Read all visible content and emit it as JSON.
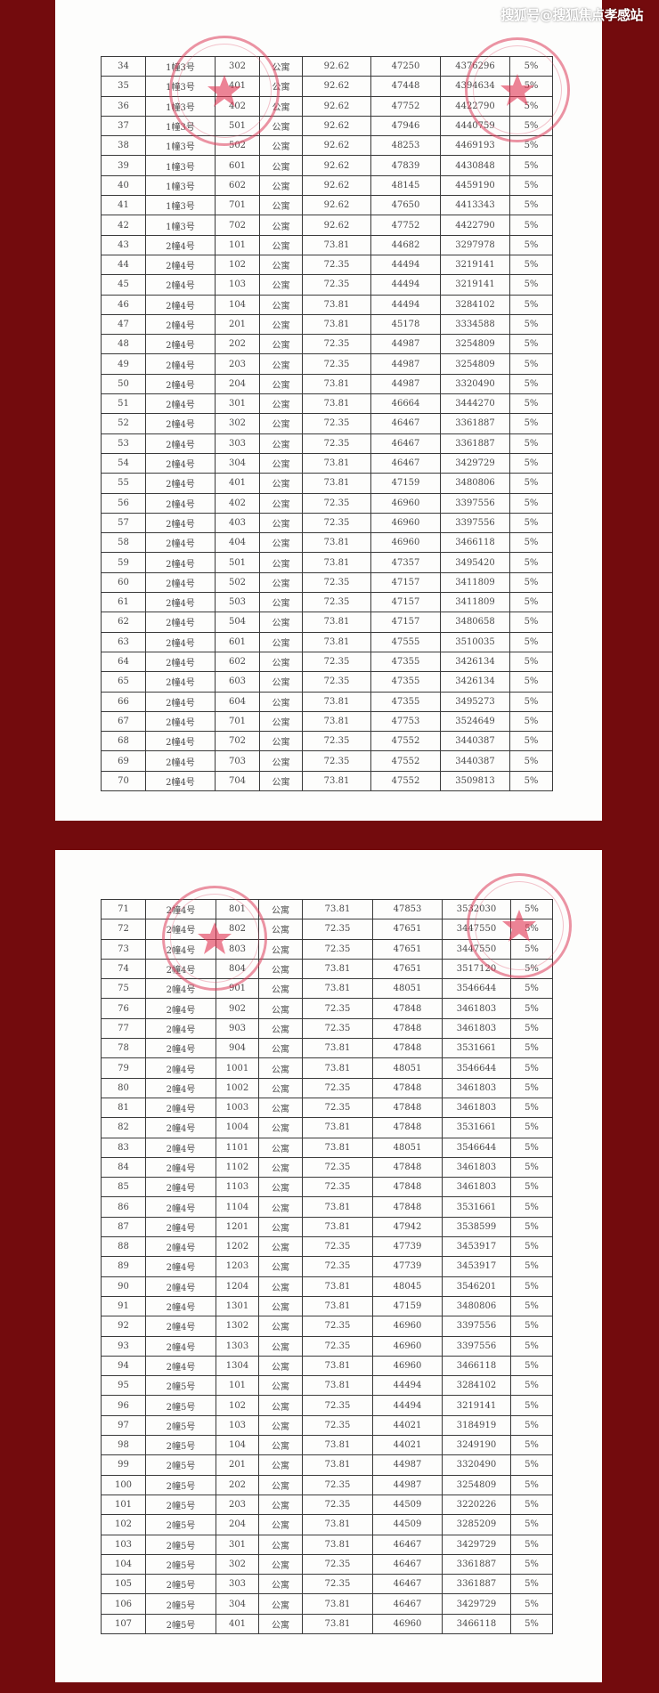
{
  "watermark": "搜狐号@搜狐焦点孝感站",
  "colors": {
    "background": "#730b0d",
    "stamp": "#e0405a",
    "paper": "#fdfdfc"
  },
  "page1": {
    "rows": [
      [
        "34",
        "1幢3号",
        "302",
        "公寓",
        "92.62",
        "47250",
        "4376296",
        "5%"
      ],
      [
        "35",
        "1幢3号",
        "401",
        "公寓",
        "92.62",
        "47448",
        "4394634",
        "5%"
      ],
      [
        "36",
        "1幢3号",
        "402",
        "公寓",
        "92.62",
        "47752",
        "4422790",
        "5%"
      ],
      [
        "37",
        "1幢3号",
        "501",
        "公寓",
        "92.62",
        "47946",
        "4440759",
        "5%"
      ],
      [
        "38",
        "1幢3号",
        "502",
        "公寓",
        "92.62",
        "48253",
        "4469193",
        "5%"
      ],
      [
        "39",
        "1幢3号",
        "601",
        "公寓",
        "92.62",
        "47839",
        "4430848",
        "5%"
      ],
      [
        "40",
        "1幢3号",
        "602",
        "公寓",
        "92.62",
        "48145",
        "4459190",
        "5%"
      ],
      [
        "41",
        "1幢3号",
        "701",
        "公寓",
        "92.62",
        "47650",
        "4413343",
        "5%"
      ],
      [
        "42",
        "1幢3号",
        "702",
        "公寓",
        "92.62",
        "47752",
        "4422790",
        "5%"
      ],
      [
        "43",
        "2幢4号",
        "101",
        "公寓",
        "73.81",
        "44682",
        "3297978",
        "5%"
      ],
      [
        "44",
        "2幢4号",
        "102",
        "公寓",
        "72.35",
        "44494",
        "3219141",
        "5%"
      ],
      [
        "45",
        "2幢4号",
        "103",
        "公寓",
        "72.35",
        "44494",
        "3219141",
        "5%"
      ],
      [
        "46",
        "2幢4号",
        "104",
        "公寓",
        "73.81",
        "44494",
        "3284102",
        "5%"
      ],
      [
        "47",
        "2幢4号",
        "201",
        "公寓",
        "73.81",
        "45178",
        "3334588",
        "5%"
      ],
      [
        "48",
        "2幢4号",
        "202",
        "公寓",
        "72.35",
        "44987",
        "3254809",
        "5%"
      ],
      [
        "49",
        "2幢4号",
        "203",
        "公寓",
        "72.35",
        "44987",
        "3254809",
        "5%"
      ],
      [
        "50",
        "2幢4号",
        "204",
        "公寓",
        "73.81",
        "44987",
        "3320490",
        "5%"
      ],
      [
        "51",
        "2幢4号",
        "301",
        "公寓",
        "73.81",
        "46664",
        "3444270",
        "5%"
      ],
      [
        "52",
        "2幢4号",
        "302",
        "公寓",
        "72.35",
        "46467",
        "3361887",
        "5%"
      ],
      [
        "53",
        "2幢4号",
        "303",
        "公寓",
        "72.35",
        "46467",
        "3361887",
        "5%"
      ],
      [
        "54",
        "2幢4号",
        "304",
        "公寓",
        "73.81",
        "46467",
        "3429729",
        "5%"
      ],
      [
        "55",
        "2幢4号",
        "401",
        "公寓",
        "73.81",
        "47159",
        "3480806",
        "5%"
      ],
      [
        "56",
        "2幢4号",
        "402",
        "公寓",
        "72.35",
        "46960",
        "3397556",
        "5%"
      ],
      [
        "57",
        "2幢4号",
        "403",
        "公寓",
        "72.35",
        "46960",
        "3397556",
        "5%"
      ],
      [
        "58",
        "2幢4号",
        "404",
        "公寓",
        "73.81",
        "46960",
        "3466118",
        "5%"
      ],
      [
        "59",
        "2幢4号",
        "501",
        "公寓",
        "73.81",
        "47357",
        "3495420",
        "5%"
      ],
      [
        "60",
        "2幢4号",
        "502",
        "公寓",
        "72.35",
        "47157",
        "3411809",
        "5%"
      ],
      [
        "61",
        "2幢4号",
        "503",
        "公寓",
        "72.35",
        "47157",
        "3411809",
        "5%"
      ],
      [
        "62",
        "2幢4号",
        "504",
        "公寓",
        "73.81",
        "47157",
        "3480658",
        "5%"
      ],
      [
        "63",
        "2幢4号",
        "601",
        "公寓",
        "73.81",
        "47555",
        "3510035",
        "5%"
      ],
      [
        "64",
        "2幢4号",
        "602",
        "公寓",
        "72.35",
        "47355",
        "3426134",
        "5%"
      ],
      [
        "65",
        "2幢4号",
        "603",
        "公寓",
        "72.35",
        "47355",
        "3426134",
        "5%"
      ],
      [
        "66",
        "2幢4号",
        "604",
        "公寓",
        "73.81",
        "47355",
        "3495273",
        "5%"
      ],
      [
        "67",
        "2幢4号",
        "701",
        "公寓",
        "73.81",
        "47753",
        "3524649",
        "5%"
      ],
      [
        "68",
        "2幢4号",
        "702",
        "公寓",
        "72.35",
        "47552",
        "3440387",
        "5%"
      ],
      [
        "69",
        "2幢4号",
        "703",
        "公寓",
        "72.35",
        "47552",
        "3440387",
        "5%"
      ],
      [
        "70",
        "2幢4号",
        "704",
        "公寓",
        "73.81",
        "47552",
        "3509813",
        "5%"
      ]
    ]
  },
  "page2": {
    "rows": [
      [
        "71",
        "2幢4号",
        "801",
        "公寓",
        "73.81",
        "47853",
        "3532030",
        "5%"
      ],
      [
        "72",
        "2幢4号",
        "802",
        "公寓",
        "72.35",
        "47651",
        "3447550",
        "5%"
      ],
      [
        "73",
        "2幢4号",
        "803",
        "公寓",
        "72.35",
        "47651",
        "3447550",
        "5%"
      ],
      [
        "74",
        "2幢4号",
        "804",
        "公寓",
        "73.81",
        "47651",
        "3517120",
        "5%"
      ],
      [
        "75",
        "2幢4号",
        "901",
        "公寓",
        "73.81",
        "48051",
        "3546644",
        "5%"
      ],
      [
        "76",
        "2幢4号",
        "902",
        "公寓",
        "72.35",
        "47848",
        "3461803",
        "5%"
      ],
      [
        "77",
        "2幢4号",
        "903",
        "公寓",
        "72.35",
        "47848",
        "3461803",
        "5%"
      ],
      [
        "78",
        "2幢4号",
        "904",
        "公寓",
        "73.81",
        "47848",
        "3531661",
        "5%"
      ],
      [
        "79",
        "2幢4号",
        "1001",
        "公寓",
        "73.81",
        "48051",
        "3546644",
        "5%"
      ],
      [
        "80",
        "2幢4号",
        "1002",
        "公寓",
        "72.35",
        "47848",
        "3461803",
        "5%"
      ],
      [
        "81",
        "2幢4号",
        "1003",
        "公寓",
        "72.35",
        "47848",
        "3461803",
        "5%"
      ],
      [
        "82",
        "2幢4号",
        "1004",
        "公寓",
        "73.81",
        "47848",
        "3531661",
        "5%"
      ],
      [
        "83",
        "2幢4号",
        "1101",
        "公寓",
        "73.81",
        "48051",
        "3546644",
        "5%"
      ],
      [
        "84",
        "2幢4号",
        "1102",
        "公寓",
        "72.35",
        "47848",
        "3461803",
        "5%"
      ],
      [
        "85",
        "2幢4号",
        "1103",
        "公寓",
        "72.35",
        "47848",
        "3461803",
        "5%"
      ],
      [
        "86",
        "2幢4号",
        "1104",
        "公寓",
        "73.81",
        "47848",
        "3531661",
        "5%"
      ],
      [
        "87",
        "2幢4号",
        "1201",
        "公寓",
        "73.81",
        "47942",
        "3538599",
        "5%"
      ],
      [
        "88",
        "2幢4号",
        "1202",
        "公寓",
        "72.35",
        "47739",
        "3453917",
        "5%"
      ],
      [
        "89",
        "2幢4号",
        "1203",
        "公寓",
        "72.35",
        "47739",
        "3453917",
        "5%"
      ],
      [
        "90",
        "2幢4号",
        "1204",
        "公寓",
        "73.81",
        "48045",
        "3546201",
        "5%"
      ],
      [
        "91",
        "2幢4号",
        "1301",
        "公寓",
        "73.81",
        "47159",
        "3480806",
        "5%"
      ],
      [
        "92",
        "2幢4号",
        "1302",
        "公寓",
        "72.35",
        "46960",
        "3397556",
        "5%"
      ],
      [
        "93",
        "2幢4号",
        "1303",
        "公寓",
        "72.35",
        "46960",
        "3397556",
        "5%"
      ],
      [
        "94",
        "2幢4号",
        "1304",
        "公寓",
        "73.81",
        "46960",
        "3466118",
        "5%"
      ],
      [
        "95",
        "2幢5号",
        "101",
        "公寓",
        "73.81",
        "44494",
        "3284102",
        "5%"
      ],
      [
        "96",
        "2幢5号",
        "102",
        "公寓",
        "72.35",
        "44494",
        "3219141",
        "5%"
      ],
      [
        "97",
        "2幢5号",
        "103",
        "公寓",
        "72.35",
        "44021",
        "3184919",
        "5%"
      ],
      [
        "98",
        "2幢5号",
        "104",
        "公寓",
        "73.81",
        "44021",
        "3249190",
        "5%"
      ],
      [
        "99",
        "2幢5号",
        "201",
        "公寓",
        "73.81",
        "44987",
        "3320490",
        "5%"
      ],
      [
        "100",
        "2幢5号",
        "202",
        "公寓",
        "72.35",
        "44987",
        "3254809",
        "5%"
      ],
      [
        "101",
        "2幢5号",
        "203",
        "公寓",
        "72.35",
        "44509",
        "3220226",
        "5%"
      ],
      [
        "102",
        "2幢5号",
        "204",
        "公寓",
        "73.81",
        "44509",
        "3285209",
        "5%"
      ],
      [
        "103",
        "2幢5号",
        "301",
        "公寓",
        "73.81",
        "46467",
        "3429729",
        "5%"
      ],
      [
        "104",
        "2幢5号",
        "302",
        "公寓",
        "72.35",
        "46467",
        "3361887",
        "5%"
      ],
      [
        "105",
        "2幢5号",
        "303",
        "公寓",
        "72.35",
        "46467",
        "3361887",
        "5%"
      ],
      [
        "106",
        "2幢5号",
        "304",
        "公寓",
        "73.81",
        "46467",
        "3429729",
        "5%"
      ],
      [
        "107",
        "2幢5号",
        "401",
        "公寓",
        "73.81",
        "46960",
        "3466118",
        "5%"
      ]
    ]
  }
}
